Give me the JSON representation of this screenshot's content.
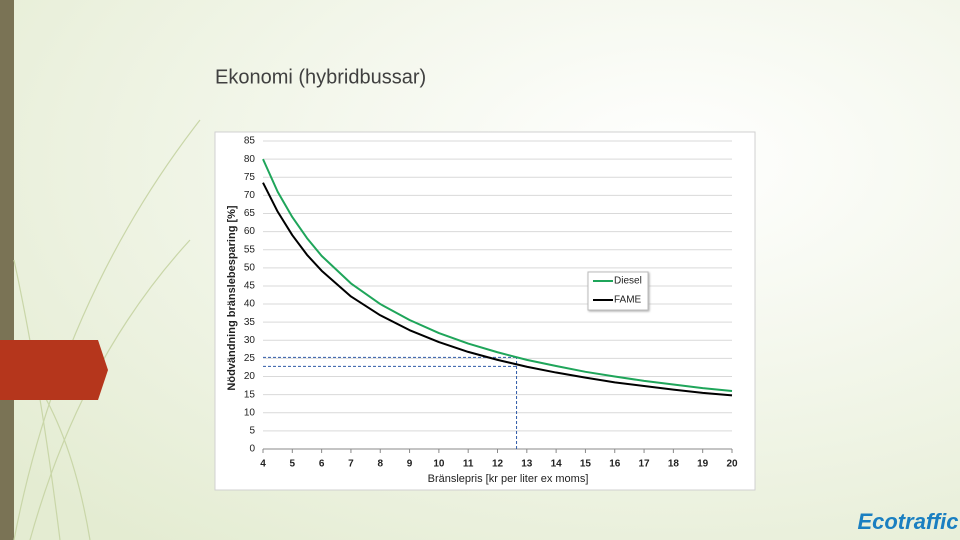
{
  "chart_data": {
    "type": "line",
    "title": "Ekonomi (hybridbussar)",
    "xlabel": "Bränslepris [kr per liter ex moms]",
    "ylabel": "Nödvändning bränslebesparing [%]",
    "x": [
      4,
      4.5,
      5,
      5.5,
      6,
      7,
      8,
      9,
      10,
      11,
      12,
      13,
      14,
      15,
      16,
      17,
      18,
      19,
      20
    ],
    "series": [
      {
        "name": "Diesel",
        "color": "#1fa55a",
        "values": [
          80,
          71,
          64,
          58.2,
          53.3,
          45.7,
          40,
          35.6,
          32,
          29.1,
          26.7,
          24.6,
          22.9,
          21.3,
          20,
          18.8,
          17.8,
          16.8,
          16
        ]
      },
      {
        "name": "FAME",
        "color": "#000000",
        "values": [
          73.5,
          65.5,
          59,
          53.6,
          49.2,
          42.1,
          36.9,
          32.8,
          29.5,
          26.8,
          24.6,
          22.7,
          21.1,
          19.7,
          18.4,
          17.4,
          16.4,
          15.5,
          14.8
        ]
      }
    ],
    "reference_lines": {
      "x": 12.65,
      "y": [
        25.3,
        22.8
      ],
      "color": "#2e5aa8"
    },
    "xlim": [
      4,
      20
    ],
    "xticks": [
      4,
      5,
      6,
      7,
      8,
      9,
      10,
      11,
      12,
      13,
      14,
      15,
      16,
      17,
      18,
      19,
      20
    ],
    "ylim": [
      0,
      85
    ],
    "yticks": [
      0,
      5,
      10,
      15,
      20,
      25,
      30,
      35,
      40,
      45,
      50,
      55,
      60,
      65,
      70,
      75,
      80,
      85
    ],
    "grid": true,
    "legend": "right"
  },
  "logo": "Ecotraffic"
}
